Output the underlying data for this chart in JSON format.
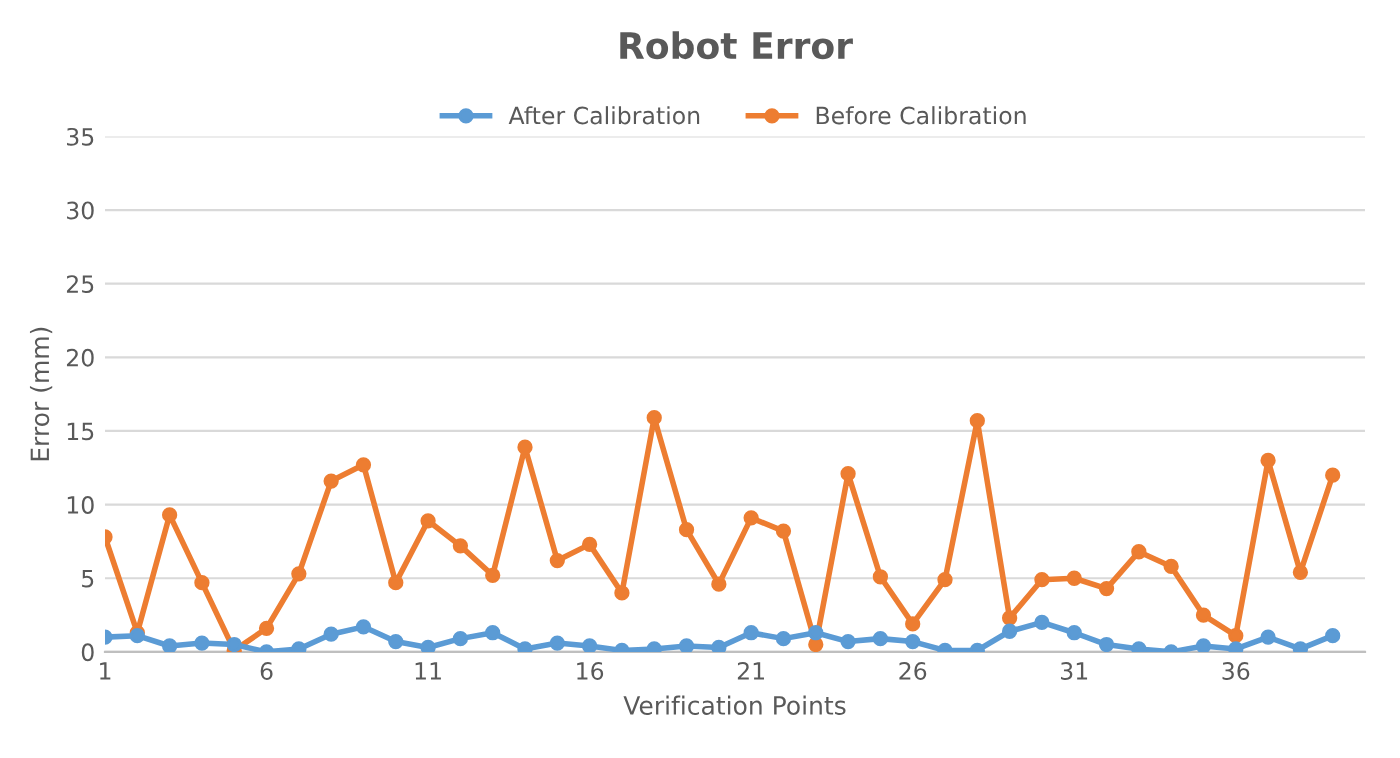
{
  "chart_data": {
    "type": "line",
    "title": "Robot Error",
    "xlabel": "Verification Points",
    "ylabel": "Error (mm)",
    "x": [
      1,
      2,
      3,
      4,
      5,
      6,
      7,
      8,
      9,
      10,
      11,
      12,
      13,
      14,
      15,
      16,
      17,
      18,
      19,
      20,
      21,
      22,
      23,
      24,
      25,
      26,
      27,
      28,
      29,
      30,
      31,
      32,
      33,
      34,
      35,
      36,
      37,
      38,
      39
    ],
    "series": [
      {
        "name": "After Calibration",
        "color": "#5b9bd5",
        "values": [
          1.0,
          1.1,
          0.4,
          0.6,
          0.5,
          0.0,
          0.2,
          1.2,
          1.7,
          0.7,
          0.3,
          0.9,
          1.3,
          0.2,
          0.6,
          0.4,
          0.1,
          0.2,
          0.4,
          0.3,
          1.3,
          0.9,
          1.3,
          0.7,
          0.9,
          0.7,
          0.1,
          0.1,
          1.4,
          2.0,
          1.3,
          0.5,
          0.2,
          0.0,
          0.4,
          0.2,
          1.0,
          0.2,
          1.1
        ]
      },
      {
        "name": "Before Calibration",
        "color": "#ed7d31",
        "values": [
          7.8,
          1.3,
          9.3,
          4.7,
          0.1,
          1.6,
          5.3,
          11.6,
          12.7,
          4.7,
          8.9,
          7.2,
          5.2,
          13.9,
          6.2,
          7.3,
          4.0,
          15.9,
          8.3,
          4.6,
          9.1,
          8.2,
          0.5,
          12.1,
          5.1,
          1.9,
          4.9,
          15.7,
          2.3,
          4.9,
          5.0,
          4.3,
          6.8,
          5.8,
          2.5,
          1.1,
          13.0,
          5.4,
          12.0
        ]
      }
    ],
    "xlim": [
      1,
      40
    ],
    "xticks": [
      1,
      6,
      11,
      16,
      21,
      26,
      31,
      36
    ],
    "ylim": [
      0,
      35
    ],
    "yticks": [
      0,
      5,
      10,
      15,
      20,
      25,
      30,
      35
    ],
    "grid": "y",
    "legend": "top",
    "marker": "circle",
    "line_style": "solid"
  }
}
